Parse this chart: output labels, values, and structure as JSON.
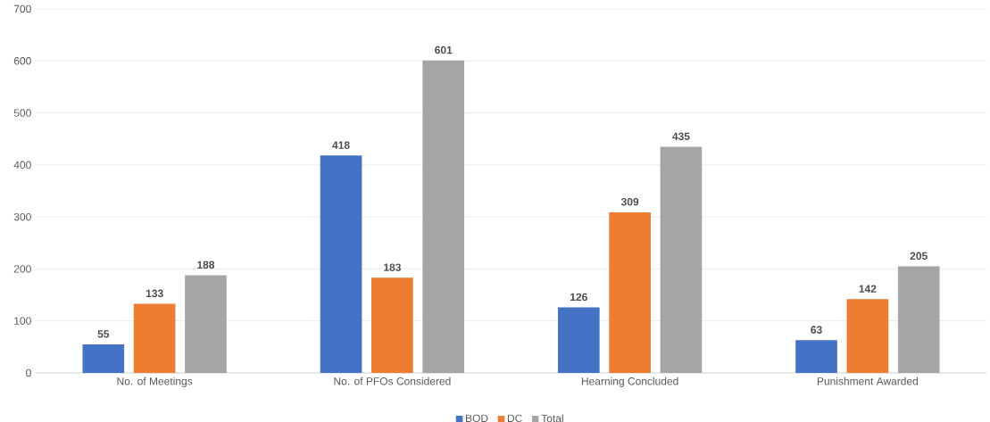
{
  "chart_data": {
    "type": "bar",
    "categories": [
      "No. of Meetings",
      "No. of PFOs Considered",
      "Hearning Concluded",
      "Punishment Awarded"
    ],
    "series": [
      {
        "name": "BOD",
        "color": "#4472c4",
        "values": [
          55,
          418,
          126,
          63
        ]
      },
      {
        "name": "DC",
        "color": "#ed7d31",
        "values": [
          133,
          183,
          309,
          142
        ]
      },
      {
        "name": "Total",
        "color": "#a5a5a5",
        "values": [
          188,
          601,
          435,
          205
        ]
      }
    ],
    "ylim": [
      0,
      700
    ],
    "yticks": [
      0,
      100,
      200,
      300,
      400,
      500,
      600,
      700
    ],
    "grid": "y",
    "legend": "bottom",
    "data_labels": true
  }
}
